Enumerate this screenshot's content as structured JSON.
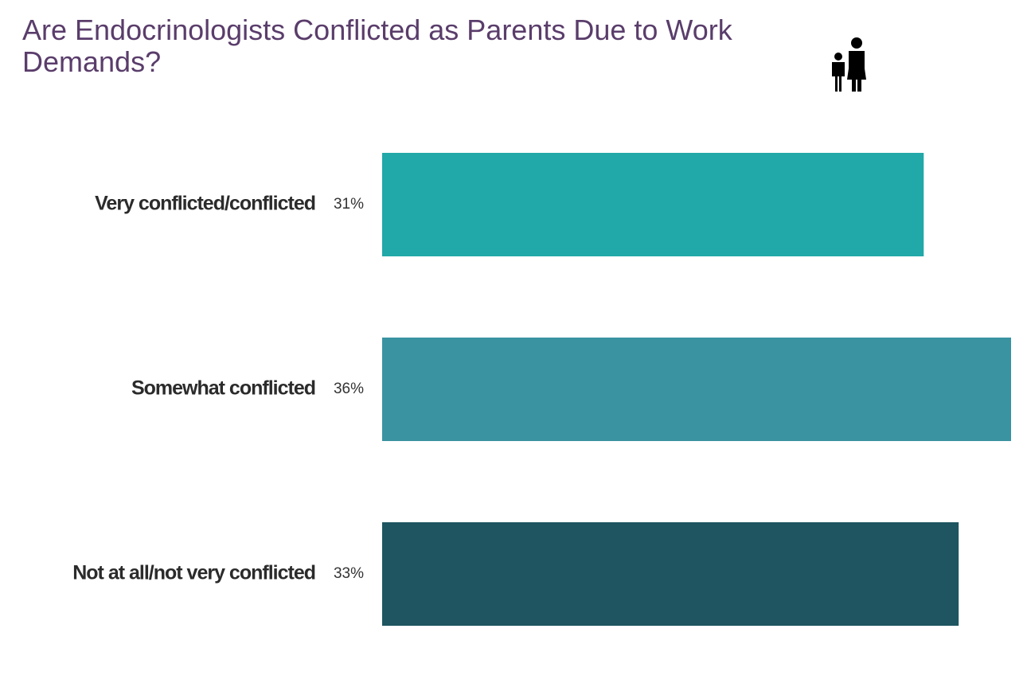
{
  "chart_data": {
    "type": "bar",
    "orientation": "horizontal",
    "title": "Are Endocrinologists Conflicted as Parents Due to Work Demands?",
    "categories": [
      "Very conflicted/conflicted",
      "Somewhat conflicted",
      "Not at all/not very conflicted"
    ],
    "values": [
      31,
      36,
      33
    ],
    "value_labels": [
      "31%",
      "36%",
      "33%"
    ],
    "colors": [
      "#21a8a8",
      "#3a93a0",
      "#1e5560"
    ]
  }
}
